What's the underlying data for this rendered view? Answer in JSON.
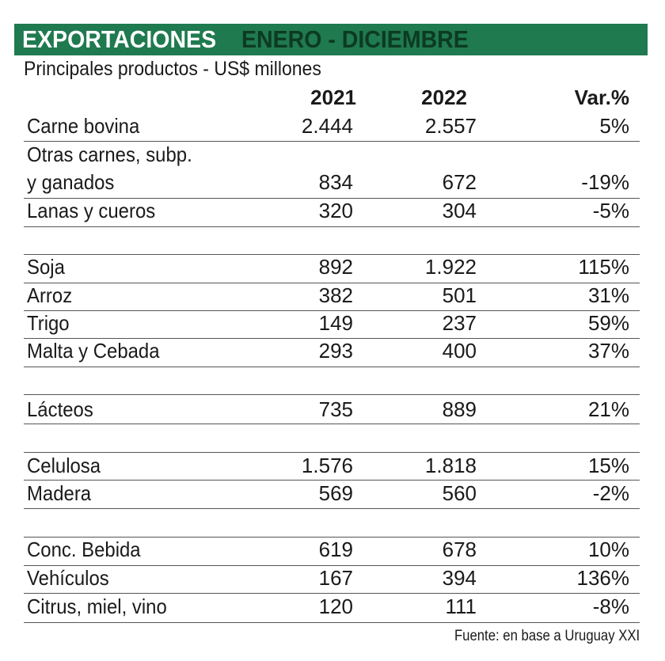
{
  "header": {
    "title_main": "EXPORTACIONES",
    "title_sub": "ENERO - DICIEMBRE"
  },
  "subtitle": "Principales productos - US$ millones",
  "columns": {
    "y2021": "2021",
    "y2022": "2022",
    "var": "Var.%"
  },
  "rows": [
    {
      "label": "Carne bovina",
      "v2021": "2.444",
      "v2022": "2.557",
      "var": "5%"
    },
    {
      "label": "Otras carnes, subp.",
      "v2021": "",
      "v2022": "",
      "var": ""
    },
    {
      "label": "y ganados",
      "v2021": "834",
      "v2022": "672",
      "var": "-19%"
    },
    {
      "label": "Lanas y cueros",
      "v2021": "320",
      "v2022": "304",
      "var": "-5%"
    },
    {
      "label": "Soja",
      "v2021": "892",
      "v2022": "1.922",
      "var": "115%"
    },
    {
      "label": "Arroz",
      "v2021": "382",
      "v2022": "501",
      "var": "31%"
    },
    {
      "label": "Trigo",
      "v2021": "149",
      "v2022": "237",
      "var": "59%"
    },
    {
      "label": "Malta y Cebada",
      "v2021": "293",
      "v2022": "400",
      "var": "37%"
    },
    {
      "label": "Lácteos",
      "v2021": "735",
      "v2022": "889",
      "var": "21%"
    },
    {
      "label": "Celulosa",
      "v2021": "1.576",
      "v2022": "1.818",
      "var": "15%"
    },
    {
      "label": "Madera",
      "v2021": "569",
      "v2022": "560",
      "var": "-2%"
    },
    {
      "label": "Conc. Bebida",
      "v2021": "619",
      "v2022": "678",
      "var": "10%"
    },
    {
      "label": "Vehículos",
      "v2021": "167",
      "v2022": "394",
      "var": "136%"
    },
    {
      "label": "Citrus, miel, vino",
      "v2021": "120",
      "v2022": "111",
      "var": "-8%"
    }
  ],
  "source": "Fuente: en base a Uruguay XXI",
  "colors": {
    "header_bg": "#1f7a4f",
    "title_main": "#ffffff",
    "title_sub": "#0d3a22"
  }
}
